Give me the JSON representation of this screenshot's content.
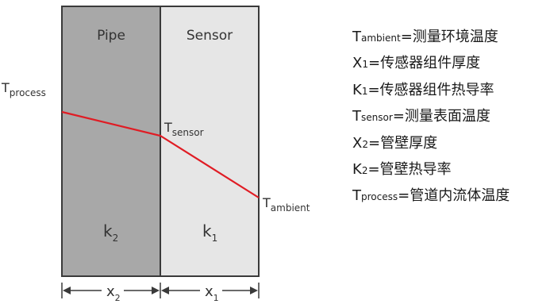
{
  "colors": {
    "pipe_fill": "#a8a8a8",
    "sensor_fill": "#e6e6e6",
    "border": "#3a3a3a",
    "temperature_line": "#e01c24"
  },
  "diagram": {
    "pipe_label": "Pipe",
    "sensor_label": "Sensor",
    "k2": {
      "base": "k",
      "sub": "2"
    },
    "k1": {
      "base": "k",
      "sub": "1"
    },
    "x2": {
      "base": "x",
      "sub": "2"
    },
    "x1": {
      "base": "x",
      "sub": "1"
    },
    "t_process": {
      "base": "T",
      "sub": "process"
    },
    "t_sensor": {
      "base": "T",
      "sub": "sensor"
    },
    "t_ambient": {
      "base": "T",
      "sub": "ambient"
    }
  },
  "legend": [
    {
      "base": "T",
      "sub": "ambient",
      "text": "=测量环境温度"
    },
    {
      "base": "X",
      "sub": "1",
      "text": "=传感器组件厚度"
    },
    {
      "base": "K",
      "sub": "1",
      "text": "=传感器组件热导率"
    },
    {
      "base": "T",
      "sub": "sensor",
      "text": "=测量表面温度"
    },
    {
      "base": "X",
      "sub": "2",
      "text": "=管壁厚度"
    },
    {
      "base": "K",
      "sub": "2",
      "text": "=管壁热导率"
    },
    {
      "base": "T",
      "sub": "process",
      "text": "=管道内流体温度"
    }
  ]
}
